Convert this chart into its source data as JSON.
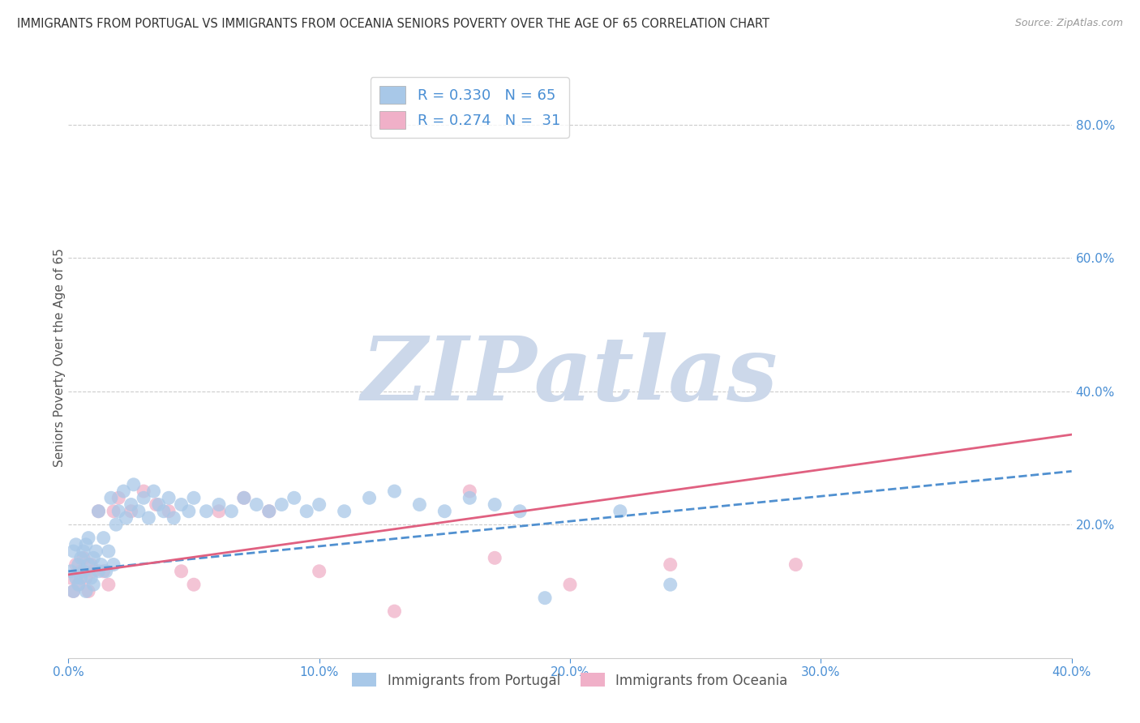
{
  "title": "IMMIGRANTS FROM PORTUGAL VS IMMIGRANTS FROM OCEANIA SENIORS POVERTY OVER THE AGE OF 65 CORRELATION CHART",
  "source": "Source: ZipAtlas.com",
  "ylabel": "Seniors Poverty Over the Age of 65",
  "xlim": [
    0.0,
    0.4
  ],
  "ylim": [
    0.0,
    0.9
  ],
  "xticks": [
    0.0,
    0.1,
    0.2,
    0.3,
    0.4
  ],
  "xtick_labels": [
    "0.0%",
    "10.0%",
    "20.0%",
    "30.0%",
    "40.0%"
  ],
  "yticks_right": [
    0.2,
    0.4,
    0.6,
    0.8
  ],
  "ytick_labels_right": [
    "20.0%",
    "40.0%",
    "60.0%",
    "80.0%"
  ],
  "grid_color": "#cccccc",
  "background_color": "#ffffff",
  "watermark": "ZIPatlas",
  "watermark_color": "#ccd8ea",
  "portugal_color": "#a8c8e8",
  "oceania_color": "#f0b0c8",
  "portugal_line_color": "#5090d0",
  "oceania_line_color": "#e06080",
  "portugal_R": 0.33,
  "portugal_N": 65,
  "oceania_R": 0.274,
  "oceania_N": 31,
  "legend_label_portugal": "Immigrants from Portugal",
  "legend_label_oceania": "Immigrants from Oceania",
  "port_line_start_y": 0.13,
  "port_line_end_y": 0.28,
  "oce_line_start_y": 0.125,
  "oce_line_end_y": 0.335,
  "portugal_x": [
    0.001,
    0.002,
    0.002,
    0.003,
    0.003,
    0.004,
    0.004,
    0.005,
    0.005,
    0.006,
    0.006,
    0.007,
    0.007,
    0.008,
    0.008,
    0.009,
    0.01,
    0.01,
    0.011,
    0.012,
    0.012,
    0.013,
    0.014,
    0.015,
    0.016,
    0.017,
    0.018,
    0.019,
    0.02,
    0.022,
    0.023,
    0.025,
    0.026,
    0.028,
    0.03,
    0.032,
    0.034,
    0.036,
    0.038,
    0.04,
    0.042,
    0.045,
    0.048,
    0.05,
    0.055,
    0.06,
    0.065,
    0.07,
    0.075,
    0.08,
    0.085,
    0.09,
    0.095,
    0.1,
    0.11,
    0.12,
    0.13,
    0.14,
    0.15,
    0.16,
    0.17,
    0.18,
    0.19,
    0.22,
    0.24
  ],
  "portugal_y": [
    0.13,
    0.1,
    0.16,
    0.12,
    0.17,
    0.14,
    0.11,
    0.15,
    0.12,
    0.16,
    0.13,
    0.1,
    0.17,
    0.14,
    0.18,
    0.12,
    0.15,
    0.11,
    0.16,
    0.13,
    0.22,
    0.14,
    0.18,
    0.13,
    0.16,
    0.24,
    0.14,
    0.2,
    0.22,
    0.25,
    0.21,
    0.23,
    0.26,
    0.22,
    0.24,
    0.21,
    0.25,
    0.23,
    0.22,
    0.24,
    0.21,
    0.23,
    0.22,
    0.24,
    0.22,
    0.23,
    0.22,
    0.24,
    0.23,
    0.22,
    0.23,
    0.24,
    0.22,
    0.23,
    0.22,
    0.24,
    0.25,
    0.23,
    0.22,
    0.24,
    0.23,
    0.22,
    0.09,
    0.22,
    0.11
  ],
  "oceania_x": [
    0.001,
    0.002,
    0.003,
    0.004,
    0.005,
    0.006,
    0.007,
    0.008,
    0.009,
    0.01,
    0.012,
    0.014,
    0.016,
    0.018,
    0.02,
    0.025,
    0.03,
    0.035,
    0.04,
    0.045,
    0.05,
    0.06,
    0.07,
    0.08,
    0.1,
    0.13,
    0.16,
    0.2,
    0.24,
    0.29,
    0.17
  ],
  "oceania_y": [
    0.12,
    0.1,
    0.14,
    0.11,
    0.13,
    0.15,
    0.12,
    0.1,
    0.14,
    0.13,
    0.22,
    0.13,
    0.11,
    0.22,
    0.24,
    0.22,
    0.25,
    0.23,
    0.22,
    0.13,
    0.11,
    0.22,
    0.24,
    0.22,
    0.13,
    0.07,
    0.25,
    0.11,
    0.14,
    0.14,
    0.15
  ]
}
